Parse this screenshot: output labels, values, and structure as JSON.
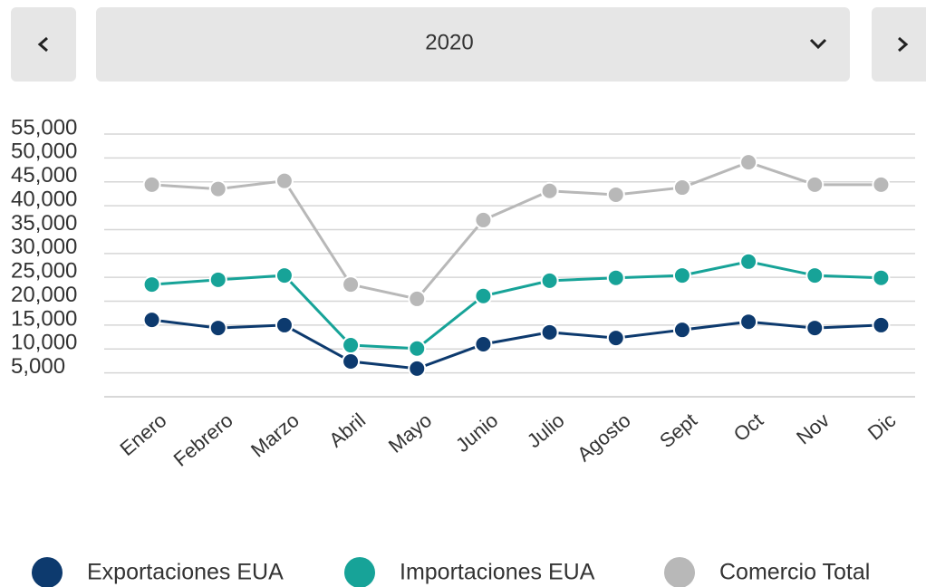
{
  "selector": {
    "value": "2020"
  },
  "chart_data": {
    "type": "line",
    "categories": [
      "Enero",
      "Febrero",
      "Marzo",
      "Abril",
      "Mayo",
      "Junio",
      "Julio",
      "Agosto",
      "Sept",
      "Oct",
      "Nov",
      "Dic"
    ],
    "series": [
      {
        "name": "Exportaciones EUA",
        "color": "#0d3a6e",
        "values": [
          16100,
          14400,
          15000,
          7400,
          5900,
          11000,
          13500,
          12300,
          14000,
          15700,
          14400,
          15000
        ]
      },
      {
        "name": "Importaciones EUA",
        "color": "#17a398",
        "values": [
          23500,
          24500,
          25400,
          10800,
          10100,
          21100,
          24300,
          24900,
          25400,
          28300,
          25400,
          24900
        ]
      },
      {
        "name": "Comercio Total",
        "color": "#b8b8b8",
        "values": [
          44400,
          43500,
          45200,
          23500,
          20500,
          37000,
          43100,
          42300,
          43800,
          49100,
          44400,
          44400
        ]
      }
    ],
    "ylim": [
      0,
      55000
    ],
    "yticks": [
      {
        "value": 5000,
        "label": "5,000"
      },
      {
        "value": 10000,
        "label": "10,000"
      },
      {
        "value": 15000,
        "label": "15,000"
      },
      {
        "value": 20000,
        "label": "20,000"
      },
      {
        "value": 25000,
        "label": "25,000"
      },
      {
        "value": 30000,
        "label": "30,000"
      },
      {
        "value": 35000,
        "label": "35,000"
      },
      {
        "value": 40000,
        "label": "40,000"
      },
      {
        "value": 45000,
        "label": "45,000"
      },
      {
        "value": 50000,
        "label": "50,000"
      },
      {
        "value": 55000,
        "label": "55,000"
      }
    ],
    "grid": true,
    "legend": "bottom"
  }
}
